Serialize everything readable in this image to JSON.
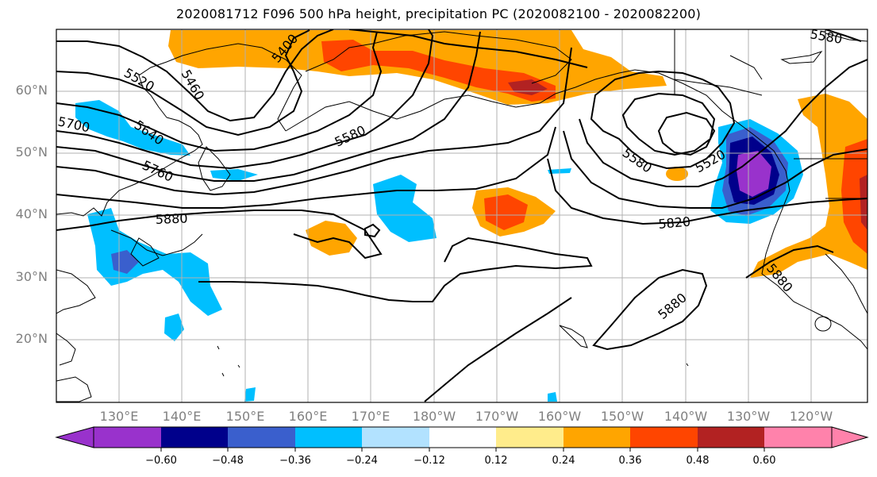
{
  "title": "2020081712 F096 500 hPa height, precipitation PC (2020082100 - 2020082200)",
  "lat_labels": [
    "60°N",
    "50°N",
    "40°N",
    "30°N",
    "20°N"
  ],
  "lon_labels": [
    "130°E",
    "140°E",
    "150°E",
    "160°E",
    "170°E",
    "180°W",
    "170°W",
    "160°W",
    "150°W",
    "140°W",
    "130°W",
    "120°W"
  ],
  "contour_labels": [
    "5520",
    "5460",
    "5400",
    "5700",
    "5640",
    "5580",
    "5760",
    "5880",
    "5580",
    "5520",
    "5820",
    "5880",
    "5880",
    "5580"
  ],
  "colorbar": {
    "ticks": [
      "−0.60",
      "−0.48",
      "−0.36",
      "−0.24",
      "−0.12",
      "0.12",
      "0.24",
      "0.36",
      "0.48",
      "0.60"
    ],
    "colors": [
      "#9932cc",
      "#00008b",
      "#3a5fcd",
      "#00bfff",
      "#b2e2ff",
      "#ffffff",
      "#ffec8b",
      "#ffa500",
      "#ff4500",
      "#b22222",
      "#ff82ab"
    ]
  },
  "colors": {
    "deep_negative": "#9932cc",
    "navy": "#00008b",
    "royal_blue": "#3a5fcd",
    "sky_blue": "#00bfff",
    "light_blue": "#b2e2ff",
    "pale_yellow": "#ffec8b",
    "orange": "#ffa500",
    "red_orange": "#ff4500",
    "firebrick": "#b22222",
    "pink": "#ff82ab"
  }
}
